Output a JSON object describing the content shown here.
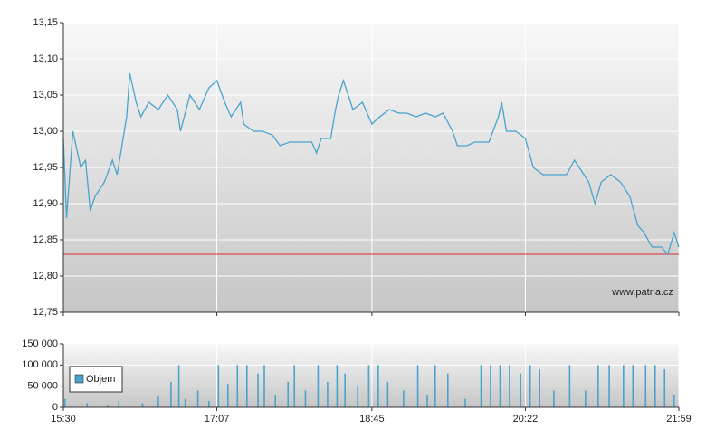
{
  "chart_data": [
    {
      "type": "line",
      "color": "#4aa3cc",
      "reference_line": 12.83,
      "reference_color": "#d9302c",
      "watermark": "www.patria.cz",
      "grid": true,
      "xlim": [
        "15:30",
        "21:59"
      ],
      "xticks": [
        "15:30",
        "17:07",
        "18:45",
        "20:22",
        "21:59"
      ],
      "ylim": [
        12.75,
        13.15
      ],
      "yticks": [
        {
          "value": 12.75,
          "label": "12,75"
        },
        {
          "value": 12.8,
          "label": "12,80"
        },
        {
          "value": 12.85,
          "label": "12,85"
        },
        {
          "value": 12.9,
          "label": "12,90"
        },
        {
          "value": 12.95,
          "label": "12,95"
        },
        {
          "value": 13.0,
          "label": "13,00"
        },
        {
          "value": 13.05,
          "label": "13,05"
        },
        {
          "value": 13.1,
          "label": "13,10"
        },
        {
          "value": 13.15,
          "label": "13,15"
        }
      ],
      "x": [
        "15:30",
        "15:32",
        "15:36",
        "15:41",
        "15:44",
        "15:47",
        "15:50",
        "15:56",
        "16:01",
        "16:04",
        "16:07",
        "16:10",
        "16:12",
        "16:16",
        "16:19",
        "16:24",
        "16:30",
        "16:36",
        "16:42",
        "16:44",
        "16:50",
        "16:56",
        "17:02",
        "17:07",
        "17:12",
        "17:16",
        "17:22",
        "17:24",
        "17:30",
        "17:36",
        "17:42",
        "17:47",
        "17:53",
        "17:59",
        "18:07",
        "18:10",
        "18:13",
        "18:19",
        "18:22",
        "18:24",
        "18:27",
        "18:30",
        "18:33",
        "18:39",
        "18:45",
        "18:50",
        "18:56",
        "19:02",
        "19:07",
        "19:13",
        "19:19",
        "19:25",
        "19:30",
        "19:36",
        "19:39",
        "19:45",
        "19:50",
        "19:59",
        "20:05",
        "20:07",
        "20:10",
        "20:16",
        "20:22",
        "20:27",
        "20:33",
        "20:42",
        "20:48",
        "20:53",
        "20:56",
        "21:02",
        "21:06",
        "21:10",
        "21:16",
        "21:22",
        "21:28",
        "21:33",
        "21:37",
        "21:42",
        "21:48",
        "21:52",
        "21:56",
        "21:59"
      ],
      "values": [
        12.99,
        12.88,
        13.0,
        12.95,
        12.96,
        12.89,
        12.91,
        12.93,
        12.96,
        12.94,
        12.98,
        13.02,
        13.08,
        13.04,
        13.02,
        13.04,
        13.03,
        13.05,
        13.03,
        13.0,
        13.05,
        13.03,
        13.06,
        13.07,
        13.04,
        13.02,
        13.04,
        13.01,
        13.0,
        13.0,
        12.995,
        12.98,
        12.985,
        12.985,
        12.985,
        12.97,
        12.99,
        12.99,
        13.03,
        13.05,
        13.07,
        13.05,
        13.03,
        13.04,
        13.01,
        13.02,
        13.03,
        13.025,
        13.025,
        13.02,
        13.025,
        13.02,
        13.025,
        13.0,
        12.98,
        12.98,
        12.985,
        12.985,
        13.02,
        13.04,
        13.0,
        13.0,
        12.99,
        12.95,
        12.94,
        12.94,
        12.94,
        12.96,
        12.95,
        12.93,
        12.9,
        12.93,
        12.94,
        12.93,
        12.91,
        12.87,
        12.86,
        12.84,
        12.84,
        12.83,
        12.86,
        12.84
      ]
    },
    {
      "type": "bar",
      "grid": true,
      "legend": "top-left",
      "xlim": [
        "15:30",
        "21:59"
      ],
      "xticks": [
        "15:30",
        "17:07",
        "18:45",
        "20:22",
        "21:59"
      ],
      "ylim": [
        0,
        150000
      ],
      "yticks": [
        0,
        {
          "value": 50000,
          "label": "50 000"
        },
        {
          "value": 100000,
          "label": "100 000"
        },
        {
          "value": 150000,
          "label": "150 000"
        }
      ],
      "x": [
        "15:31",
        "15:45",
        "15:58",
        "16:05",
        "16:20",
        "16:30",
        "16:38",
        "16:43",
        "16:47",
        "16:55",
        "17:02",
        "17:08",
        "17:14",
        "17:20",
        "17:26",
        "17:33",
        "17:37",
        "17:44",
        "17:52",
        "17:56",
        "18:03",
        "18:11",
        "18:17",
        "18:23",
        "18:28",
        "18:36",
        "18:43",
        "18:49",
        "18:55",
        "19:05",
        "19:14",
        "19:20",
        "19:25",
        "19:33",
        "19:44",
        "19:54",
        "20:00",
        "20:06",
        "20:12",
        "20:19",
        "20:25",
        "20:31",
        "20:40",
        "20:50",
        "21:00",
        "21:08",
        "21:15",
        "21:24",
        "21:30",
        "21:38",
        "21:44",
        "21:50",
        "21:56"
      ],
      "series": [
        {
          "name": "Objem",
          "color": "#4aa3cc",
          "values": [
            20000,
            10000,
            5000,
            15000,
            10000,
            25000,
            60000,
            100000,
            20000,
            40000,
            15000,
            100000,
            55000,
            100000,
            100000,
            80000,
            100000,
            30000,
            60000,
            100000,
            40000,
            100000,
            60000,
            100000,
            80000,
            50000,
            100000,
            100000,
            60000,
            40000,
            100000,
            30000,
            100000,
            80000,
            20000,
            100000,
            100000,
            100000,
            100000,
            80000,
            100000,
            90000,
            40000,
            100000,
            40000,
            100000,
            100000,
            100000,
            100000,
            100000,
            100000,
            90000,
            30000
          ]
        }
      ]
    }
  ]
}
